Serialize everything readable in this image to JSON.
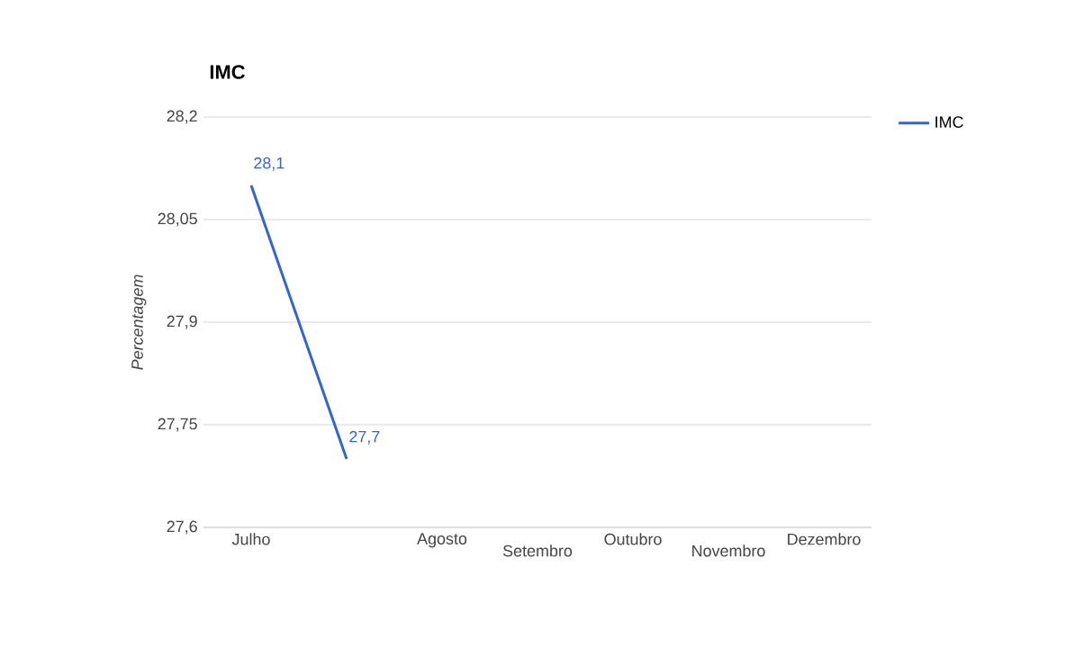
{
  "chart_data": {
    "type": "line",
    "title": "IMC",
    "ylabel": "Percentagem",
    "categories": [
      "Julho",
      null,
      "Agosto",
      "Setembro",
      "Outubro",
      "Novembro",
      "Dezembro"
    ],
    "series": [
      {
        "name": "IMC",
        "color": "#3366cc",
        "values": [
          28.1,
          27.7,
          null,
          null,
          null,
          null,
          null
        ],
        "value_labels": [
          "28,1",
          "27,7",
          null,
          null,
          null,
          null,
          null
        ]
      }
    ],
    "ylim": [
      27.6,
      28.2
    ],
    "yticks": [
      {
        "value": 27.6,
        "label": "27,6"
      },
      {
        "value": 27.75,
        "label": "27,75"
      },
      {
        "value": 27.9,
        "label": "27,9"
      },
      {
        "value": 28.05,
        "label": "28,05"
      },
      {
        "value": 28.2,
        "label": "28,2"
      }
    ],
    "grid": "y",
    "legend": "top right",
    "marker": "none",
    "line_style": "solid"
  }
}
